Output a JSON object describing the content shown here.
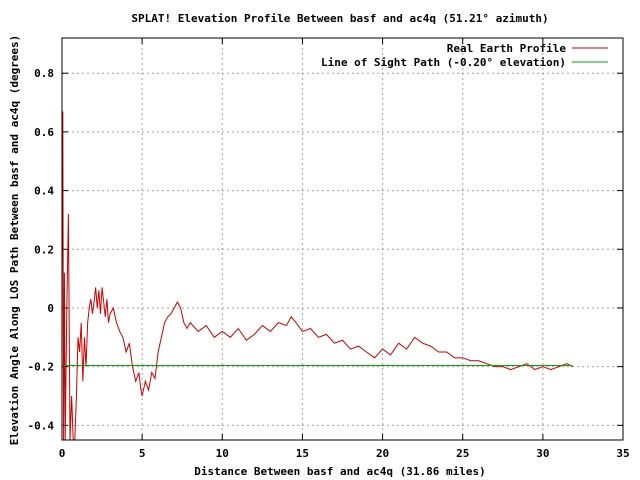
{
  "chart_data": {
    "type": "line",
    "title": "SPLAT! Elevation Profile Between basf and ac4q (51.21° azimuth)",
    "xlabel": "Distance Between basf and ac4q (31.86 miles)",
    "ylabel": "Elevation Angle Along LOS Path Between basf and ac4q (degrees)",
    "xlim": [
      0,
      35
    ],
    "ylim": [
      -0.45,
      0.92
    ],
    "xticks": [
      0,
      5,
      10,
      15,
      20,
      25,
      30,
      35
    ],
    "yticks": [
      -0.4,
      -0.2,
      0,
      0.2,
      0.4,
      0.6,
      0.8
    ],
    "xtick_labels": [
      "0",
      "5",
      "10",
      "15",
      "20",
      "25",
      "30",
      "35"
    ],
    "ytick_labels": [
      "-0.4",
      "-0.2",
      "0",
      "0.2",
      "0.4",
      "0.6",
      "0.8"
    ],
    "grid": true,
    "legend_position": "top-right",
    "series": [
      {
        "name": "Real Earth Profile",
        "color": "#cc0000",
        "x": [
          0,
          0.05,
          0.1,
          0.15,
          0.2,
          0.3,
          0.4,
          0.5,
          0.6,
          0.7,
          0.8,
          0.9,
          1.0,
          1.1,
          1.2,
          1.3,
          1.4,
          1.5,
          1.6,
          1.7,
          1.8,
          1.9,
          2.0,
          2.1,
          2.2,
          2.3,
          2.4,
          2.5,
          2.6,
          2.7,
          2.8,
          2.9,
          3.0,
          3.2,
          3.4,
          3.6,
          3.8,
          4.0,
          4.2,
          4.4,
          4.6,
          4.8,
          4.9,
          5.0,
          5.2,
          5.4,
          5.6,
          5.8,
          6.0,
          6.2,
          6.4,
          6.6,
          6.8,
          7.0,
          7.2,
          7.4,
          7.6,
          7.8,
          8.0,
          8.5,
          9.0,
          9.5,
          10.0,
          10.5,
          11.0,
          11.5,
          12.0,
          12.5,
          13.0,
          13.5,
          14.0,
          14.3,
          14.6,
          15.0,
          15.5,
          16.0,
          16.5,
          17.0,
          17.5,
          18.0,
          18.5,
          19.0,
          19.5,
          20.0,
          20.5,
          21.0,
          21.5,
          22.0,
          22.5,
          23.0,
          23.5,
          24.0,
          24.5,
          25.0,
          25.5,
          26.0,
          26.5,
          27.0,
          27.5,
          28.0,
          28.5,
          29.0,
          29.5,
          30.0,
          30.5,
          31.0,
          31.5,
          31.86
        ],
        "y": [
          0.1,
          0.67,
          -0.45,
          0.12,
          -0.45,
          0.0,
          0.32,
          -0.45,
          -0.3,
          -0.45,
          -0.45,
          -0.3,
          -0.1,
          -0.15,
          -0.05,
          -0.25,
          -0.1,
          -0.2,
          -0.05,
          0.0,
          0.03,
          -0.02,
          0.02,
          0.07,
          0.0,
          0.06,
          -0.02,
          0.07,
          0.02,
          -0.03,
          0.03,
          -0.05,
          -0.02,
          0.0,
          -0.05,
          -0.08,
          -0.1,
          -0.15,
          -0.12,
          -0.2,
          -0.25,
          -0.22,
          -0.27,
          -0.3,
          -0.25,
          -0.28,
          -0.22,
          -0.24,
          -0.15,
          -0.1,
          -0.05,
          -0.03,
          -0.02,
          0.0,
          0.02,
          0.0,
          -0.05,
          -0.07,
          -0.05,
          -0.08,
          -0.06,
          -0.1,
          -0.08,
          -0.1,
          -0.07,
          -0.11,
          -0.09,
          -0.06,
          -0.08,
          -0.05,
          -0.06,
          -0.03,
          -0.05,
          -0.08,
          -0.07,
          -0.1,
          -0.09,
          -0.12,
          -0.11,
          -0.14,
          -0.13,
          -0.15,
          -0.17,
          -0.14,
          -0.16,
          -0.12,
          -0.14,
          -0.1,
          -0.12,
          -0.13,
          -0.15,
          -0.15,
          -0.17,
          -0.17,
          -0.18,
          -0.18,
          -0.19,
          -0.2,
          -0.2,
          -0.21,
          -0.2,
          -0.19,
          -0.21,
          -0.2,
          -0.21,
          -0.2,
          -0.19,
          -0.2
        ]
      },
      {
        "name": "Line of Sight Path (-0.20° elevation)",
        "color": "#00aa00",
        "x": [
          0,
          31.86
        ],
        "y": [
          -0.196,
          -0.196
        ]
      }
    ]
  }
}
